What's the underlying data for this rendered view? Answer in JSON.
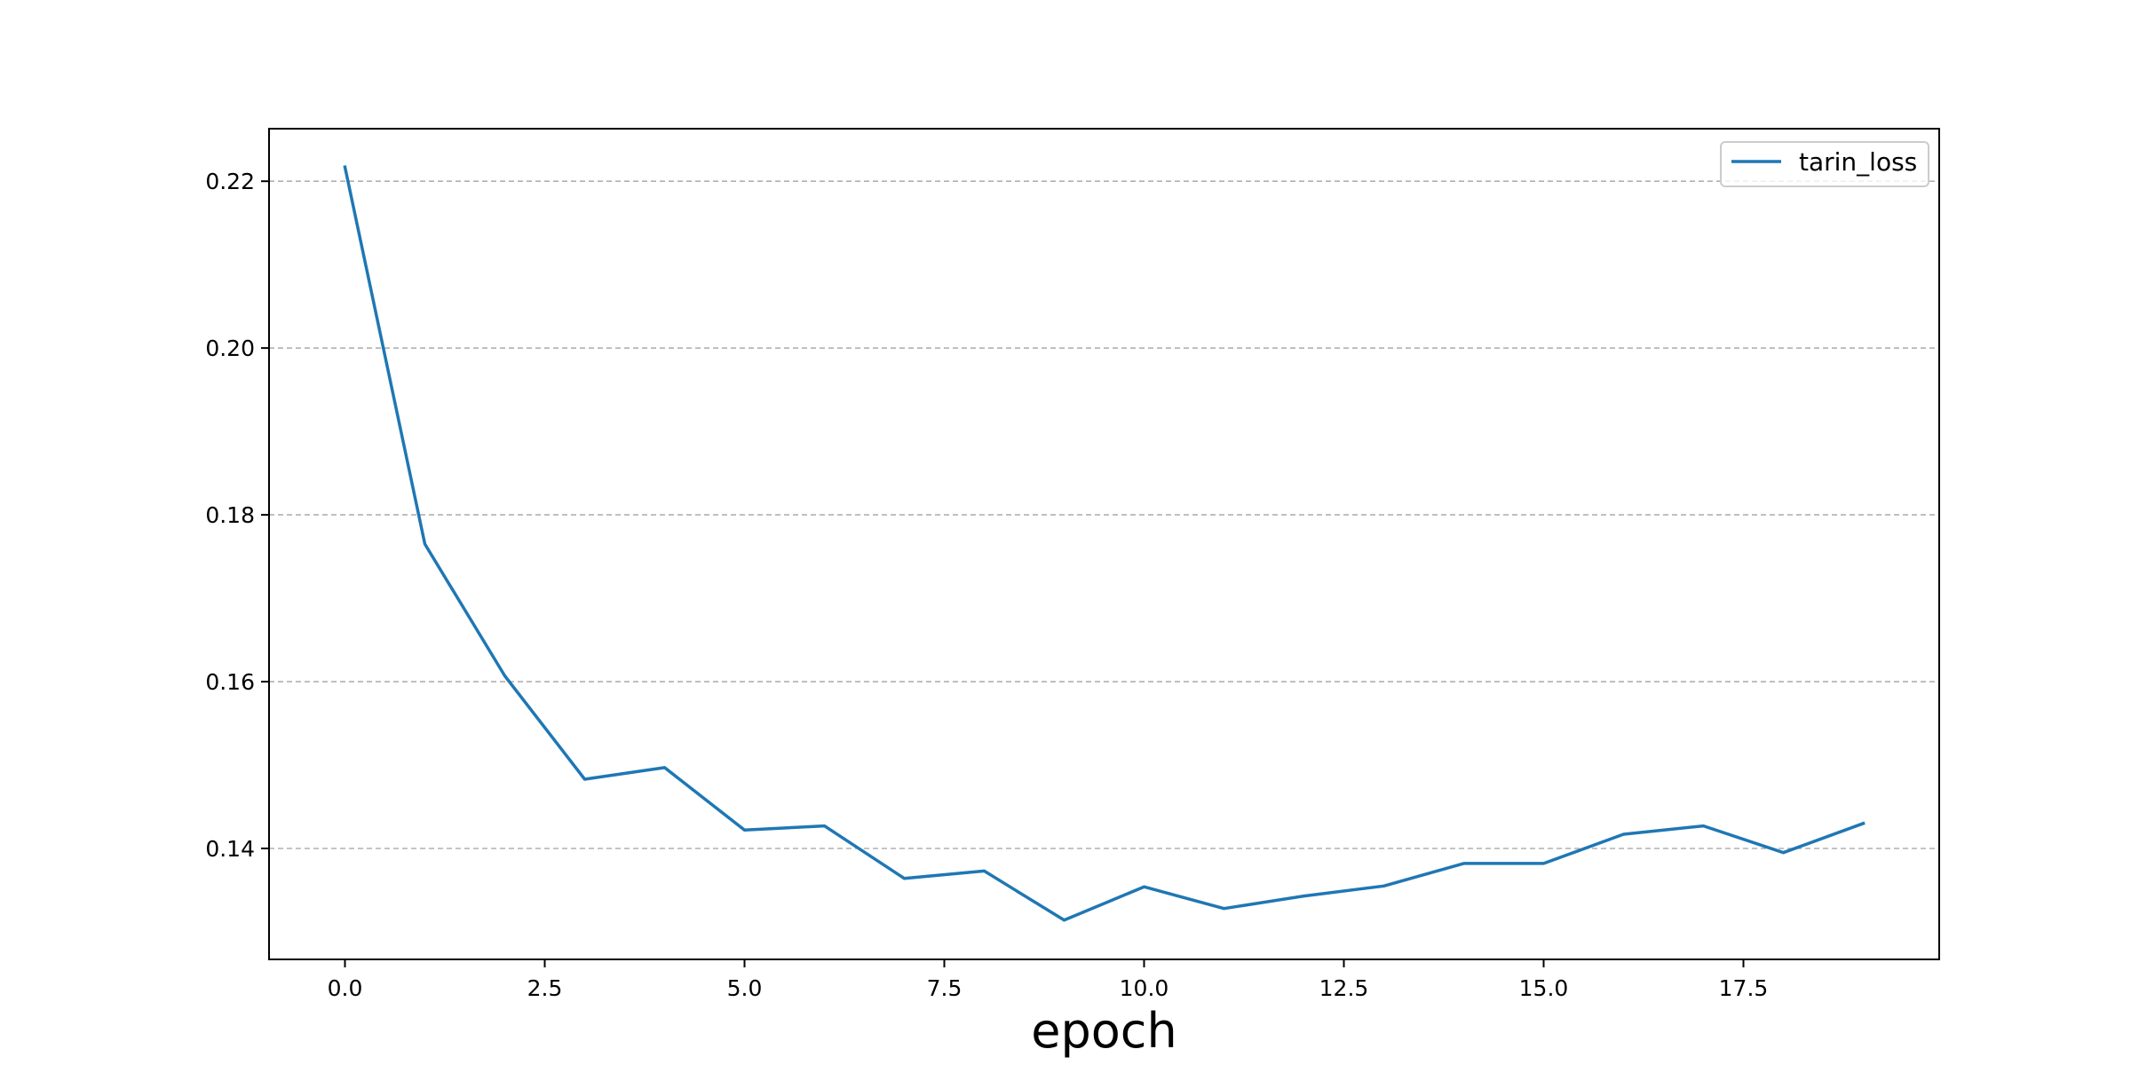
{
  "chart_data": {
    "type": "line",
    "title": "",
    "xlabel": "epoch",
    "ylabel": "",
    "xlim": [
      -0.95,
      19.95
    ],
    "ylim": [
      0.1267,
      0.2263
    ],
    "xticks": [
      0.0,
      2.5,
      5.0,
      7.5,
      10.0,
      12.5,
      15.0,
      17.5
    ],
    "xtick_labels": [
      "0.0",
      "2.5",
      "5.0",
      "7.5",
      "10.0",
      "12.5",
      "15.0",
      "17.5"
    ],
    "yticks": [
      0.14,
      0.16,
      0.18,
      0.2,
      0.22
    ],
    "ytick_labels": [
      "0.14",
      "0.16",
      "0.18",
      "0.20",
      "0.22"
    ],
    "grid": "y-dashed",
    "legend_position": "top-right",
    "series": [
      {
        "name": "tarin_loss",
        "color": "#1f77b4",
        "x": [
          0,
          1,
          2,
          3,
          4,
          5,
          6,
          7,
          8,
          9,
          10,
          11,
          12,
          13,
          14,
          15,
          16,
          17,
          18,
          19
        ],
        "y": [
          0.2217,
          0.1765,
          0.1607,
          0.1483,
          0.1497,
          0.1422,
          0.1427,
          0.1364,
          0.1373,
          0.1314,
          0.1354,
          0.1328,
          0.1343,
          0.1355,
          0.1382,
          0.1382,
          0.1417,
          0.1427,
          0.1395,
          0.143
        ]
      }
    ]
  }
}
